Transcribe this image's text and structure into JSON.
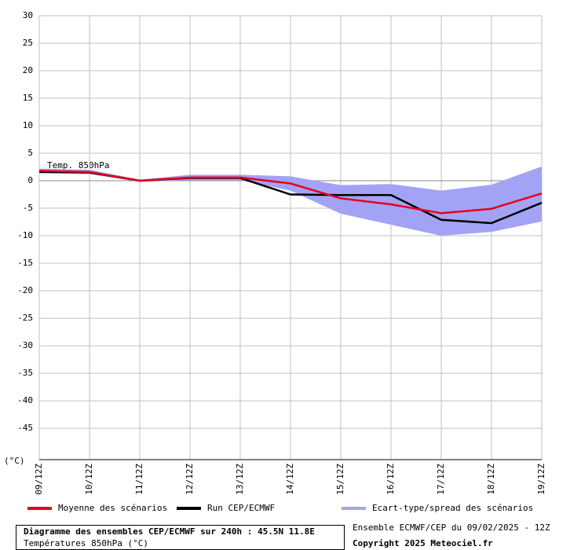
{
  "chart_data": {
    "type": "line",
    "title": "Diagramme des ensembles CEP/ECMWF sur 240h : 45.5N 11.8E",
    "subtitle": "Températures 850hPa (°C)",
    "run_info": "Ensemble ECMWF/CEP du 09/02/2025 - 12Z",
    "copyright": "Copyright 2025 Meteociel.fr",
    "annotation": "Temp. 850hPa",
    "y_label": "(°C)",
    "categories": [
      "09/12Z",
      "10/12Z",
      "11/12Z",
      "12/12Z",
      "13/12Z",
      "14/12Z",
      "15/12Z",
      "16/12Z",
      "17/12Z",
      "18/12Z",
      "19/12Z"
    ],
    "series": [
      {
        "name": "Ecart-type/spread des scénarios",
        "color": "#a3a3f5",
        "values": [
          2.2,
          2.0,
          0.2,
          1.1,
          1.1,
          0.8,
          -0.8,
          -0.6,
          -1.8,
          -0.7,
          2.6
        ],
        "lower": [
          1.4,
          1.2,
          -0.2,
          0.1,
          0.1,
          -1.8,
          -6.0,
          -8.0,
          -10.0,
          -9.3,
          -7.4
        ]
      },
      {
        "name": "Run CEP/ECMWF",
        "color": "#000000",
        "values": [
          1.6,
          1.5,
          0,
          0.5,
          0.5,
          -2.5,
          -2.6,
          -2.6,
          -7.1,
          -7.7,
          -4.0
        ]
      },
      {
        "name": "Moyenne des scénarios",
        "color": "#e8001c",
        "values": [
          1.8,
          1.6,
          0,
          0.6,
          0.6,
          -0.5,
          -3.2,
          -4.3,
          -5.9,
          -5.1,
          -2.3
        ]
      }
    ],
    "ylim": [
      -50.7,
      30
    ],
    "yticks": [
      30,
      25,
      20,
      15,
      10,
      5,
      0,
      -5,
      -10,
      -15,
      -20,
      -25,
      -30,
      -35,
      -40,
      -45
    ],
    "grid": true
  }
}
